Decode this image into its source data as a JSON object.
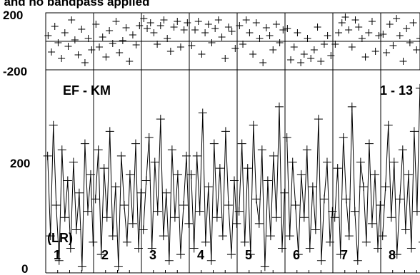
{
  "title": "l and no bandpass applied",
  "chart_data": [
    {
      "type": "scatter",
      "role": "phase",
      "y_tick_labels": [
        "200",
        "-200"
      ],
      "ylim": [
        -200,
        200
      ],
      "grid": true,
      "panels": [
        {
          "channel": "1",
          "x": [
            0.05,
            0.12,
            0.19,
            0.26,
            0.33,
            0.4,
            0.47,
            0.54,
            0.61,
            0.68,
            0.75,
            0.82,
            0.89,
            0.96
          ],
          "y": [
            40,
            -75,
            105,
            -10,
            -120,
            60,
            -35,
            150,
            10,
            -95,
            85,
            -150,
            20,
            -60
          ]
        },
        {
          "channel": "2",
          "x": [
            0.05,
            0.12,
            0.19,
            0.26,
            0.33,
            0.4,
            0.47,
            0.54,
            0.61,
            0.68,
            0.75,
            0.82,
            0.89,
            0.96
          ],
          "y": [
            120,
            -40,
            30,
            -110,
            75,
            -15,
            140,
            -80,
            5,
            95,
            -140,
            45,
            -25,
            110
          ]
        },
        {
          "channel": "3",
          "x": [
            0.05,
            0.12,
            0.19,
            0.26,
            0.33,
            0.4,
            0.47,
            0.54,
            0.61,
            0.68,
            0.75,
            0.82,
            0.89,
            0.96
          ],
          "y": [
            160,
            90,
            130,
            60,
            -20,
            110,
            150,
            20,
            -70,
            100,
            140,
            -40,
            80,
            130
          ]
        },
        {
          "channel": "4",
          "x": [
            0.05,
            0.12,
            0.19,
            0.26,
            0.33,
            0.4,
            0.47,
            0.54,
            0.61,
            0.68,
            0.75,
            0.82,
            0.89,
            0.96
          ],
          "y": [
            -30,
            80,
            140,
            -90,
            60,
            120,
            -10,
            90,
            150,
            30,
            -120,
            100,
            70,
            -50
          ]
        },
        {
          "channel": "5",
          "x": [
            0.05,
            0.12,
            0.19,
            0.26,
            0.33,
            0.4,
            0.47,
            0.54,
            0.61,
            0.68,
            0.75,
            0.82,
            0.89,
            0.96
          ],
          "y": [
            110,
            -20,
            150,
            60,
            -90,
            130,
            20,
            -150,
            95,
            40,
            -60,
            120,
            -10,
            80
          ]
        },
        {
          "channel": "6",
          "x": [
            0.05,
            0.12,
            0.19,
            0.26,
            0.33,
            0.4,
            0.47,
            0.54,
            0.61,
            0.68,
            0.75,
            0.82,
            0.89,
            0.96
          ],
          "y": [
            90,
            -130,
            -40,
            60,
            -150,
            -90,
            20,
            -120,
            -60,
            100,
            -140,
            -20,
            40,
            -100
          ]
        },
        {
          "channel": "7",
          "x": [
            0.05,
            0.12,
            0.19,
            0.26,
            0.33,
            0.4,
            0.47,
            0.54,
            0.61,
            0.68,
            0.75,
            0.82,
            0.89,
            0.96
          ],
          "y": [
            -20,
            60,
            130,
            170,
            80,
            -40,
            150,
            100,
            20,
            -110,
            60,
            140,
            -70,
            40
          ]
        },
        {
          "channel": "8",
          "x": [
            0.05,
            0.12,
            0.19,
            0.26,
            0.33,
            0.4,
            0.47,
            0.54,
            0.61,
            0.68,
            0.75,
            0.82,
            0.89,
            0.96
          ],
          "y": [
            50,
            -80,
            120,
            -30,
            160,
            40,
            -140,
            90,
            -10,
            130,
            -60,
            20,
            110,
            -120
          ]
        }
      ]
    },
    {
      "type": "line",
      "role": "amplitude",
      "y_tick_labels": [
        "200",
        "0"
      ],
      "ylim": [
        0,
        330
      ],
      "baseline_label": "EF - KM",
      "channel_range_label": "1 - 13",
      "polarization_label": "(LR)",
      "grid": true,
      "panels": [
        {
          "channel": "1",
          "x": [
            0.04,
            0.1,
            0.16,
            0.22,
            0.28,
            0.34,
            0.4,
            0.46,
            0.52,
            0.58,
            0.64,
            0.7,
            0.76,
            0.82,
            0.88,
            0.94,
            0.99
          ],
          "y": [
            190,
            60,
            240,
            110,
            20,
            200,
            90,
            150,
            40,
            180,
            70,
            130,
            10,
            210,
            100,
            160,
            50
          ]
        },
        {
          "channel": "2",
          "x": [
            0.04,
            0.1,
            0.16,
            0.22,
            0.28,
            0.34,
            0.4,
            0.46,
            0.52,
            0.58,
            0.64,
            0.7,
            0.76,
            0.82,
            0.88,
            0.94,
            0.99
          ],
          "y": [
            120,
            200,
            30,
            170,
            90,
            230,
            60,
            140,
            10,
            190,
            110,
            50,
            160,
            80,
            210,
            40,
            130
          ]
        },
        {
          "channel": "3",
          "x": [
            0.04,
            0.1,
            0.16,
            0.22,
            0.28,
            0.34,
            0.4,
            0.46,
            0.52,
            0.58,
            0.64,
            0.7,
            0.76,
            0.82,
            0.88,
            0.94,
            0.99
          ],
          "y": [
            70,
            150,
            220,
            40,
            180,
            100,
            250,
            60,
            130,
            20,
            200,
            90,
            160,
            30,
            110,
            190,
            80
          ]
        },
        {
          "channel": "4",
          "x": [
            0.04,
            0.1,
            0.16,
            0.22,
            0.28,
            0.34,
            0.4,
            0.46,
            0.52,
            0.58,
            0.64,
            0.7,
            0.76,
            0.82,
            0.88,
            0.94,
            0.99
          ],
          "y": [
            160,
            40,
            190,
            100,
            260,
            50,
            140,
            20,
            210,
            90,
            170,
            60,
            230,
            110,
            30,
            150,
            80
          ]
        },
        {
          "channel": "5",
          "x": [
            0.04,
            0.1,
            0.16,
            0.22,
            0.28,
            0.34,
            0.4,
            0.46,
            0.52,
            0.58,
            0.64,
            0.7,
            0.76,
            0.82,
            0.88,
            0.94,
            0.99
          ],
          "y": [
            100,
            210,
            50,
            170,
            30,
            240,
            120,
            80,
            200,
            10,
            150,
            60,
            190,
            90,
            270,
            40,
            130
          ]
        },
        {
          "channel": "6",
          "x": [
            0.04,
            0.1,
            0.16,
            0.22,
            0.28,
            0.34,
            0.4,
            0.46,
            0.52,
            0.58,
            0.64,
            0.7,
            0.76,
            0.82,
            0.88,
            0.94,
            0.99
          ],
          "y": [
            220,
            60,
            180,
            110,
            30,
            160,
            90,
            200,
            40,
            140,
            70,
            250,
            20,
            120,
            180,
            50,
            100
          ]
        },
        {
          "channel": "7",
          "x": [
            0.04,
            0.1,
            0.16,
            0.22,
            0.28,
            0.34,
            0.4,
            0.46,
            0.52,
            0.58,
            0.64,
            0.7,
            0.76,
            0.82,
            0.88,
            0.94,
            0.99
          ],
          "y": [
            90,
            170,
            30,
            220,
            120,
            60,
            270,
            100,
            20,
            180,
            140,
            50,
            210,
            80,
            160,
            40,
            110
          ]
        },
        {
          "channel": "8",
          "x": [
            0.04,
            0.1,
            0.16,
            0.22,
            0.28,
            0.34,
            0.4,
            0.46,
            0.52,
            0.58,
            0.64,
            0.7,
            0.76,
            0.82,
            0.88,
            0.94,
            0.99
          ],
          "y": [
            60,
            140,
            240,
            90,
            180,
            30,
            120,
            200,
            70,
            160,
            40,
            230,
            100,
            300,
            50,
            150,
            260
          ]
        }
      ]
    }
  ]
}
